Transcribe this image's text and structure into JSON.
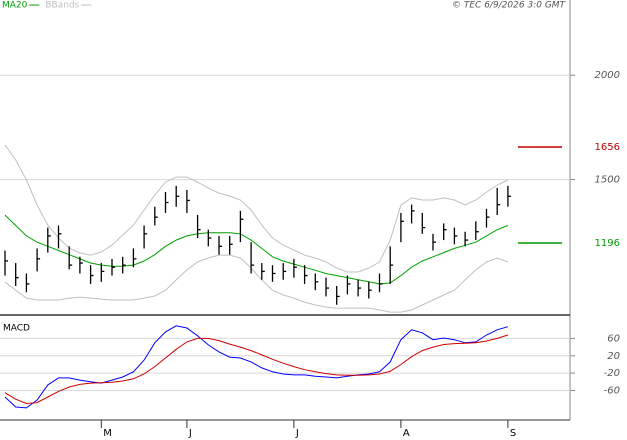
{
  "chart_data": [
    {
      "type": "ohlc",
      "credit": "© TEC 6/9/2026 3:0 GMT",
      "close": [
        1110,
        1030,
        1000,
        1120,
        1230,
        1240,
        1090,
        1100,
        1040,
        1060,
        1080,
        1090,
        1120,
        1240,
        1320,
        1390,
        1420,
        1400,
        1260,
        1220,
        1180,
        1190,
        1310,
        1090,
        1060,
        1050,
        1060,
        1080,
        1040,
        1010,
        980,
        940,
        1000,
        980,
        970,
        1000,
        1090,
        1300,
        1350,
        1270,
        1200,
        1260,
        1230,
        1210,
        1250,
        1320,
        1380,
        1420
      ],
      "high": [
        1160,
        1100,
        1050,
        1170,
        1270,
        1280,
        1180,
        1130,
        1090,
        1100,
        1120,
        1130,
        1170,
        1280,
        1370,
        1440,
        1470,
        1450,
        1330,
        1260,
        1230,
        1230,
        1350,
        1200,
        1100,
        1090,
        1100,
        1120,
        1090,
        1050,
        1030,
        990,
        1040,
        1020,
        1010,
        1050,
        1180,
        1340,
        1380,
        1340,
        1240,
        1290,
        1270,
        1250,
        1300,
        1360,
        1460,
        1470
      ],
      "low": [
        1040,
        990,
        960,
        1060,
        1150,
        1170,
        1070,
        1050,
        1000,
        1010,
        1040,
        1050,
        1080,
        1170,
        1280,
        1340,
        1370,
        1340,
        1220,
        1180,
        1140,
        1140,
        1200,
        1050,
        1020,
        1010,
        1020,
        1030,
        1000,
        970,
        940,
        900,
        950,
        940,
        930,
        960,
        1000,
        1200,
        1290,
        1240,
        1160,
        1210,
        1190,
        1180,
        1210,
        1270,
        1330,
        1370
      ],
      "bar_color": "#000000",
      "series": [
        {
          "name": "MA20",
          "color": "#00a000",
          "values": [
            1330,
            1280,
            1230,
            1200,
            1180,
            1160,
            1140,
            1120,
            1100,
            1090,
            1085,
            1085,
            1090,
            1110,
            1140,
            1180,
            1210,
            1230,
            1240,
            1245,
            1245,
            1245,
            1240,
            1210,
            1170,
            1130,
            1110,
            1095,
            1080,
            1065,
            1050,
            1040,
            1030,
            1020,
            1010,
            1000,
            1005,
            1040,
            1080,
            1110,
            1130,
            1150,
            1170,
            1185,
            1200,
            1230,
            1260,
            1280
          ]
        },
        {
          "name": "BBands",
          "color": "#c0c0c0",
          "upper": [
            1666,
            1594,
            1498,
            1378,
            1282,
            1220,
            1172,
            1148,
            1138,
            1153,
            1186,
            1234,
            1282,
            1354,
            1426,
            1488,
            1512,
            1512,
            1488,
            1459,
            1435,
            1421,
            1402,
            1354,
            1282,
            1220,
            1186,
            1162,
            1138,
            1124,
            1105,
            1076,
            1057,
            1057,
            1076,
            1105,
            1210,
            1378,
            1412,
            1402,
            1402,
            1412,
            1402,
            1378,
            1402,
            1440,
            1474,
            1498
          ],
          "lower": [
            1009,
            970,
            932,
            923,
            923,
            923,
            932,
            937,
            932,
            927,
            923,
            923,
            923,
            932,
            942,
            970,
            1019,
            1067,
            1105,
            1124,
            1138,
            1138,
            1124,
            1076,
            1019,
            970,
            947,
            932,
            913,
            899,
            889,
            884,
            884,
            884,
            884,
            875,
            865,
            865,
            875,
            899,
            923,
            947,
            970,
            1019,
            1067,
            1105,
            1124,
            1105
          ]
        }
      ],
      "levels": [
        {
          "value": 1656,
          "color": "#c00000"
        },
        {
          "value": 1196,
          "color": "#009900"
        }
      ],
      "ylim": [
        851,
        2303
      ],
      "yticks": [
        1500,
        2000
      ],
      "grid": true
    },
    {
      "type": "line",
      "title": "MACD",
      "categories": [
        null,
        null,
        null,
        null,
        null,
        null,
        null,
        null,
        null,
        "M",
        null,
        null,
        null,
        null,
        null,
        null,
        null,
        "J",
        null,
        null,
        null,
        null,
        null,
        null,
        null,
        null,
        null,
        "J",
        null,
        null,
        null,
        null,
        null,
        null,
        null,
        null,
        null,
        "A",
        null,
        null,
        null,
        null,
        null,
        null,
        null,
        null,
        null,
        "S"
      ],
      "series": [
        {
          "color": "#0000ff",
          "values": [
            -75,
            -98,
            -100,
            -82,
            -47,
            -31,
            -31,
            -36,
            -40,
            -43,
            -36,
            -29,
            -17,
            10,
            50,
            75,
            89,
            84,
            66,
            45,
            29,
            17,
            15,
            6,
            -8,
            -17,
            -22,
            -24,
            -24,
            -27,
            -29,
            -31,
            -27,
            -24,
            -22,
            -17,
            6,
            57,
            80,
            73,
            57,
            61,
            57,
            50,
            52,
            68,
            80,
            87
          ]
        },
        {
          "color": "#cc0000",
          "values": [
            -65,
            -80,
            -90,
            -88,
            -75,
            -62,
            -52,
            -46,
            -43,
            -42,
            -41,
            -38,
            -33,
            -22,
            -5,
            15,
            35,
            52,
            60,
            60,
            55,
            47,
            40,
            32,
            22,
            12,
            3,
            -5,
            -12,
            -17,
            -21,
            -24,
            -25,
            -25,
            -24,
            -22,
            -16,
            0,
            18,
            32,
            40,
            46,
            48,
            49,
            50,
            54,
            60,
            68
          ]
        }
      ],
      "ylim": [
        -128,
        114
      ],
      "yticks": [
        60,
        20,
        -20,
        -60
      ],
      "grid": true
    }
  ]
}
